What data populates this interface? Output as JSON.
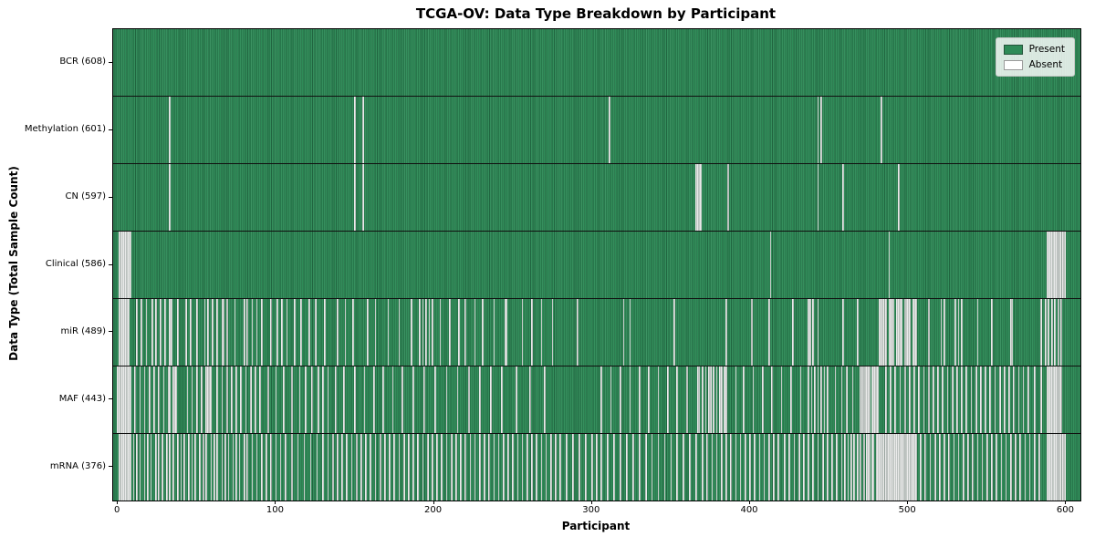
{
  "chart_data": {
    "type": "heatmap",
    "title": "TCGA-OV: Data Type Breakdown by Participant",
    "xlabel": "Participant",
    "ylabel": "Data Type (Total Sample Count)",
    "legend_position": "upper right",
    "grid": false,
    "n_participants": 608,
    "xlim": [
      -3,
      609
    ],
    "x_ticks": [
      0,
      100,
      200,
      300,
      400,
      500,
      600
    ],
    "colors": {
      "present": "#2e8b57",
      "present_edge": "#1c5e3a",
      "absent": "#ffffff",
      "absent_edge": "#b9b9b9",
      "spine": "#000000"
    },
    "legend": [
      {
        "label": "Present",
        "color": "#2e8b57"
      },
      {
        "label": "Absent",
        "color": "#ffffff"
      }
    ],
    "rows": [
      {
        "label": "BCR (608)",
        "name": "BCR",
        "present_count": 608,
        "absent": []
      },
      {
        "label": "Methylation (601)",
        "name": "Methylation",
        "present_count": 601,
        "absent": [
          33,
          150,
          155,
          311,
          443,
          445,
          483
        ]
      },
      {
        "label": "CN (597)",
        "name": "CN",
        "present_count": 597,
        "absent": [
          33,
          150,
          155,
          366,
          367,
          368,
          369,
          386,
          443,
          459,
          494
        ]
      },
      {
        "label": "Clinical (586)",
        "name": "Clinical",
        "present_count": 586,
        "absent": [
          1,
          2,
          3,
          4,
          5,
          6,
          7,
          8,
          413,
          488,
          588,
          589,
          590,
          591,
          592,
          593,
          594,
          595,
          596,
          597,
          598,
          599
        ]
      },
      {
        "label": "miR (489)",
        "name": "miR",
        "present_count": 489,
        "absent": [
          1,
          2,
          3,
          4,
          5,
          6,
          7,
          12,
          15,
          18,
          22,
          24,
          27,
          30,
          33,
          34,
          38,
          43,
          46,
          50,
          55,
          57,
          60,
          63,
          66,
          67,
          69,
          74,
          80,
          82,
          85,
          88,
          91,
          97,
          101,
          104,
          107,
          112,
          116,
          121,
          125,
          131,
          139,
          144,
          149,
          158,
          163,
          171,
          178,
          186,
          191,
          193,
          195,
          197,
          199,
          204,
          210,
          216,
          220,
          226,
          231,
          238,
          245,
          246,
          256,
          262,
          268,
          275,
          291,
          320,
          324,
          352,
          385,
          401,
          412,
          427,
          437,
          438,
          440,
          443,
          459,
          468,
          482,
          483,
          484,
          485,
          486,
          488,
          489,
          490,
          491,
          493,
          494,
          495,
          496,
          498,
          499,
          500,
          501,
          503,
          504,
          505,
          513,
          521,
          523,
          530,
          532,
          534,
          544,
          553,
          565,
          566,
          584,
          587,
          589,
          591,
          593,
          595,
          597
        ]
      },
      {
        "label": "MAF (443)",
        "name": "MAF",
        "present_count": 443,
        "absent": [
          0,
          1,
          2,
          3,
          4,
          5,
          6,
          7,
          8,
          11,
          14,
          17,
          20,
          23,
          26,
          29,
          32,
          33,
          35,
          36,
          37,
          44,
          47,
          50,
          53,
          56,
          57,
          58,
          59,
          63,
          66,
          69,
          72,
          75,
          78,
          81,
          84,
          87,
          90,
          95,
          100,
          105,
          110,
          115,
          119,
          123,
          127,
          130,
          133,
          138,
          143,
          150,
          156,
          162,
          168,
          174,
          180,
          187,
          194,
          201,
          208,
          215,
          222,
          229,
          236,
          243,
          252,
          261,
          270,
          306,
          312,
          318,
          324,
          330,
          336,
          342,
          348,
          354,
          360,
          367,
          368,
          370,
          372,
          374,
          375,
          377,
          379,
          381,
          382,
          384,
          385,
          391,
          396,
          402,
          408,
          414,
          420,
          426,
          432,
          437,
          439,
          441,
          443,
          445,
          447,
          449,
          454,
          458,
          461,
          465,
          470,
          471,
          472,
          473,
          474,
          475,
          476,
          477,
          478,
          479,
          480,
          481,
          486,
          489,
          492,
          495,
          498,
          501,
          504,
          507,
          510,
          513,
          516,
          519,
          522,
          525,
          528,
          531,
          534,
          537,
          540,
          543,
          546,
          549,
          552,
          555,
          558,
          561,
          564,
          567,
          570,
          573,
          576,
          580,
          584,
          588,
          589,
          590,
          591,
          592,
          593,
          594,
          595,
          596,
          597
        ]
      },
      {
        "label": "mRNA (376)",
        "name": "mRNA",
        "present_count": 376,
        "absent": [
          1,
          2,
          3,
          4,
          5,
          6,
          7,
          8,
          10,
          12,
          14,
          17,
          19,
          21,
          24,
          26,
          28,
          31,
          33,
          35,
          38,
          40,
          42,
          45,
          47,
          49,
          52,
          54,
          56,
          59,
          61,
          63,
          66,
          68,
          70,
          73,
          75,
          77,
          80,
          82,
          85,
          88,
          91,
          94,
          97,
          100,
          103,
          106,
          110,
          114,
          118,
          122,
          126,
          130,
          133,
          136,
          139,
          142,
          145,
          148,
          151,
          154,
          157,
          160,
          163,
          166,
          169,
          172,
          175,
          178,
          181,
          184,
          187,
          190,
          193,
          196,
          199,
          202,
          205,
          208,
          211,
          214,
          217,
          220,
          223,
          226,
          229,
          232,
          235,
          238,
          241,
          244,
          247,
          250,
          253,
          256,
          259,
          262,
          265,
          268,
          271,
          274,
          277,
          280,
          284,
          288,
          292,
          296,
          300,
          303,
          306,
          310,
          314,
          318,
          322,
          326,
          330,
          334,
          338,
          342,
          346,
          350,
          354,
          358,
          362,
          366,
          370,
          373,
          376,
          379,
          382,
          385,
          388,
          391,
          394,
          397,
          400,
          403,
          406,
          409,
          412,
          415,
          418,
          422,
          425,
          428,
          431,
          434,
          437,
          440,
          443,
          446,
          449,
          452,
          455,
          458,
          460,
          462,
          464,
          466,
          468,
          470,
          472,
          474,
          475,
          476,
          477,
          478,
          480,
          481,
          482,
          483,
          484,
          485,
          486,
          487,
          488,
          489,
          490,
          491,
          492,
          493,
          494,
          495,
          496,
          497,
          498,
          499,
          500,
          501,
          502,
          503,
          504,
          505,
          508,
          511,
          514,
          517,
          520,
          523,
          526,
          529,
          532,
          535,
          538,
          541,
          544,
          547,
          550,
          553,
          556,
          559,
          562,
          565,
          568,
          571,
          574,
          577,
          580,
          583,
          588,
          589,
          590,
          591,
          592,
          593,
          594,
          595,
          596,
          597,
          598,
          599
        ]
      }
    ]
  }
}
